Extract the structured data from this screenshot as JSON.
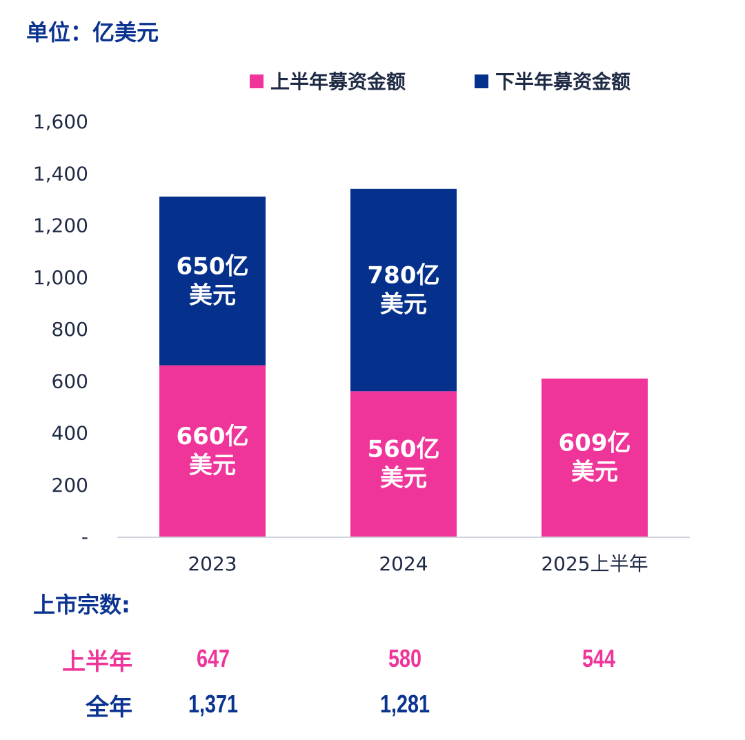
{
  "unit_label": "单位：亿美元",
  "legend": [
    {
      "label": "上半年募资金额",
      "color": "#f0359a"
    },
    {
      "label": "下半年募资金额",
      "color": "#05318c"
    }
  ],
  "colors": {
    "h1": "#f0359a",
    "h2": "#05318c",
    "title": "#0b3390",
    "axis": "#cfd4dc"
  },
  "chart_data": {
    "type": "bar",
    "stacked": true,
    "categories": [
      "2023",
      "2024",
      "2025上半年"
    ],
    "series": [
      {
        "name": "上半年募资金额",
        "values": [
          660,
          560,
          609
        ],
        "labels": [
          "660亿\n美元",
          "560亿\n美元",
          "609亿\n美元"
        ]
      },
      {
        "name": "下半年募资金额",
        "values": [
          650,
          780,
          null
        ],
        "labels": [
          "650亿\n美元",
          "780亿\n美元",
          ""
        ]
      }
    ],
    "yticks": [
      "-",
      "200",
      "400",
      "600",
      "800",
      "1,000",
      "1,200",
      "1,400",
      "1,600"
    ],
    "ylim": [
      0,
      1600
    ],
    "legend_position": "top"
  },
  "listings": {
    "title": "上市宗数:",
    "rows": [
      {
        "label": "上半年",
        "values": [
          "647",
          "580",
          "544"
        ]
      },
      {
        "label": "全年",
        "values": [
          "1,371",
          "1,281",
          ""
        ]
      }
    ]
  }
}
